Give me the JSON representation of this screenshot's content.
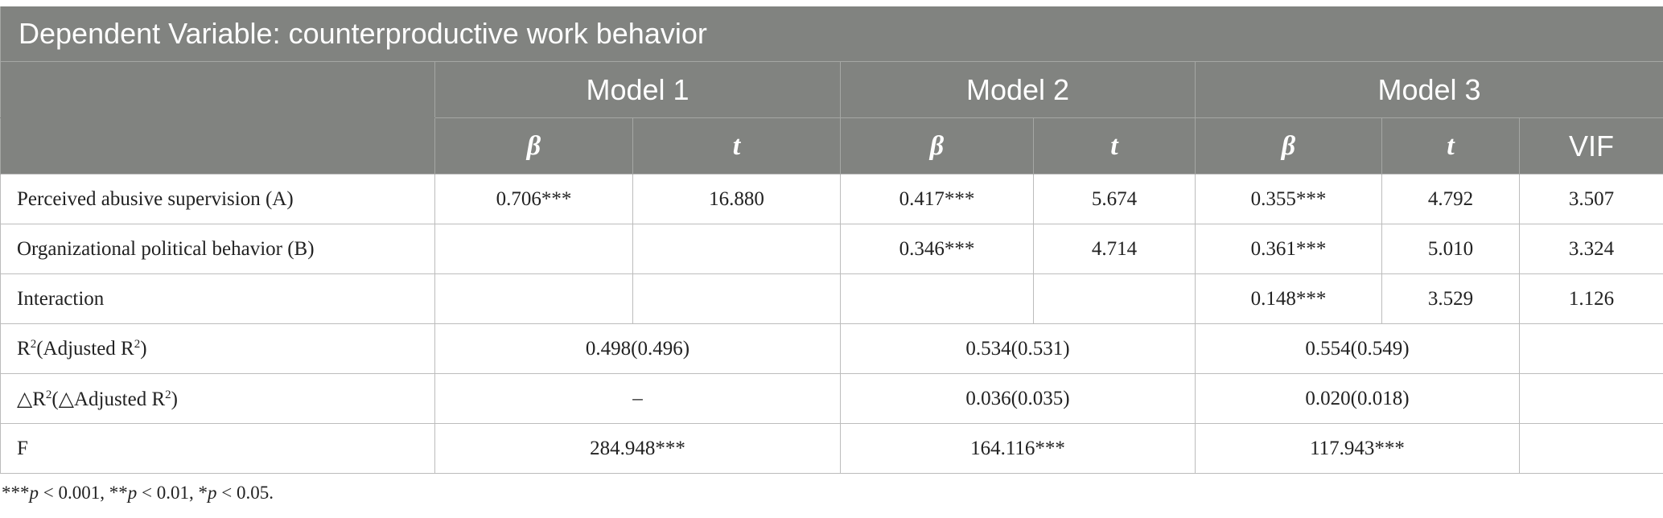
{
  "header": {
    "title": "Dependent Variable: counterproductive work behavior",
    "models": [
      "Model 1",
      "Model 2",
      "Model 3"
    ],
    "beta": "β",
    "t": "t",
    "vif": "VIF"
  },
  "rows": {
    "r1": {
      "label": "Perceived abusive supervision (A)",
      "m1b": "0.706***",
      "m1t": "16.880",
      "m2b": "0.417***",
      "m2t": "5.674",
      "m3b": "0.355***",
      "m3t": "4.792",
      "vif": "3.507"
    },
    "r2": {
      "label": "Organizational political behavior (B)",
      "m1b": "",
      "m1t": "",
      "m2b": "0.346***",
      "m2t": "4.714",
      "m3b": "0.361***",
      "m3t": "5.010",
      "vif": "3.324"
    },
    "r3": {
      "label": "Interaction",
      "m1b": "",
      "m1t": "",
      "m2b": "",
      "m2t": "",
      "m3b": "0.148***",
      "m3t": "3.529",
      "vif": "1.126"
    },
    "r4": {
      "label_pre": "R",
      "label_sup": "2",
      "label_mid": "(Adjusted R",
      "label_sup2": "2",
      "label_post": ")",
      "m1": "0.498(0.496)",
      "m2": "0.534(0.531)",
      "m3": "0.554(0.549)",
      "vif": ""
    },
    "r5": {
      "label_pre": "△R",
      "label_sup": "2",
      "label_mid": "(△Adjusted R",
      "label_sup2": "2",
      "label_post": ")",
      "m1": "–",
      "m2": "0.036(0.035)",
      "m3": "0.020(0.018)",
      "vif": ""
    },
    "r6": {
      "label": "F",
      "m1": "284.948***",
      "m2": "164.116***",
      "m3": "117.943***",
      "vif": ""
    }
  },
  "note": {
    "p1_stars": "***",
    "p1_var": "p",
    "p1_rest": " < 0.001, ",
    "p2_stars": "**",
    "p2_var": "p",
    "p2_rest": " < 0.01, ",
    "p3_stars": "*",
    "p3_var": "p",
    "p3_rest": " < 0.05."
  }
}
